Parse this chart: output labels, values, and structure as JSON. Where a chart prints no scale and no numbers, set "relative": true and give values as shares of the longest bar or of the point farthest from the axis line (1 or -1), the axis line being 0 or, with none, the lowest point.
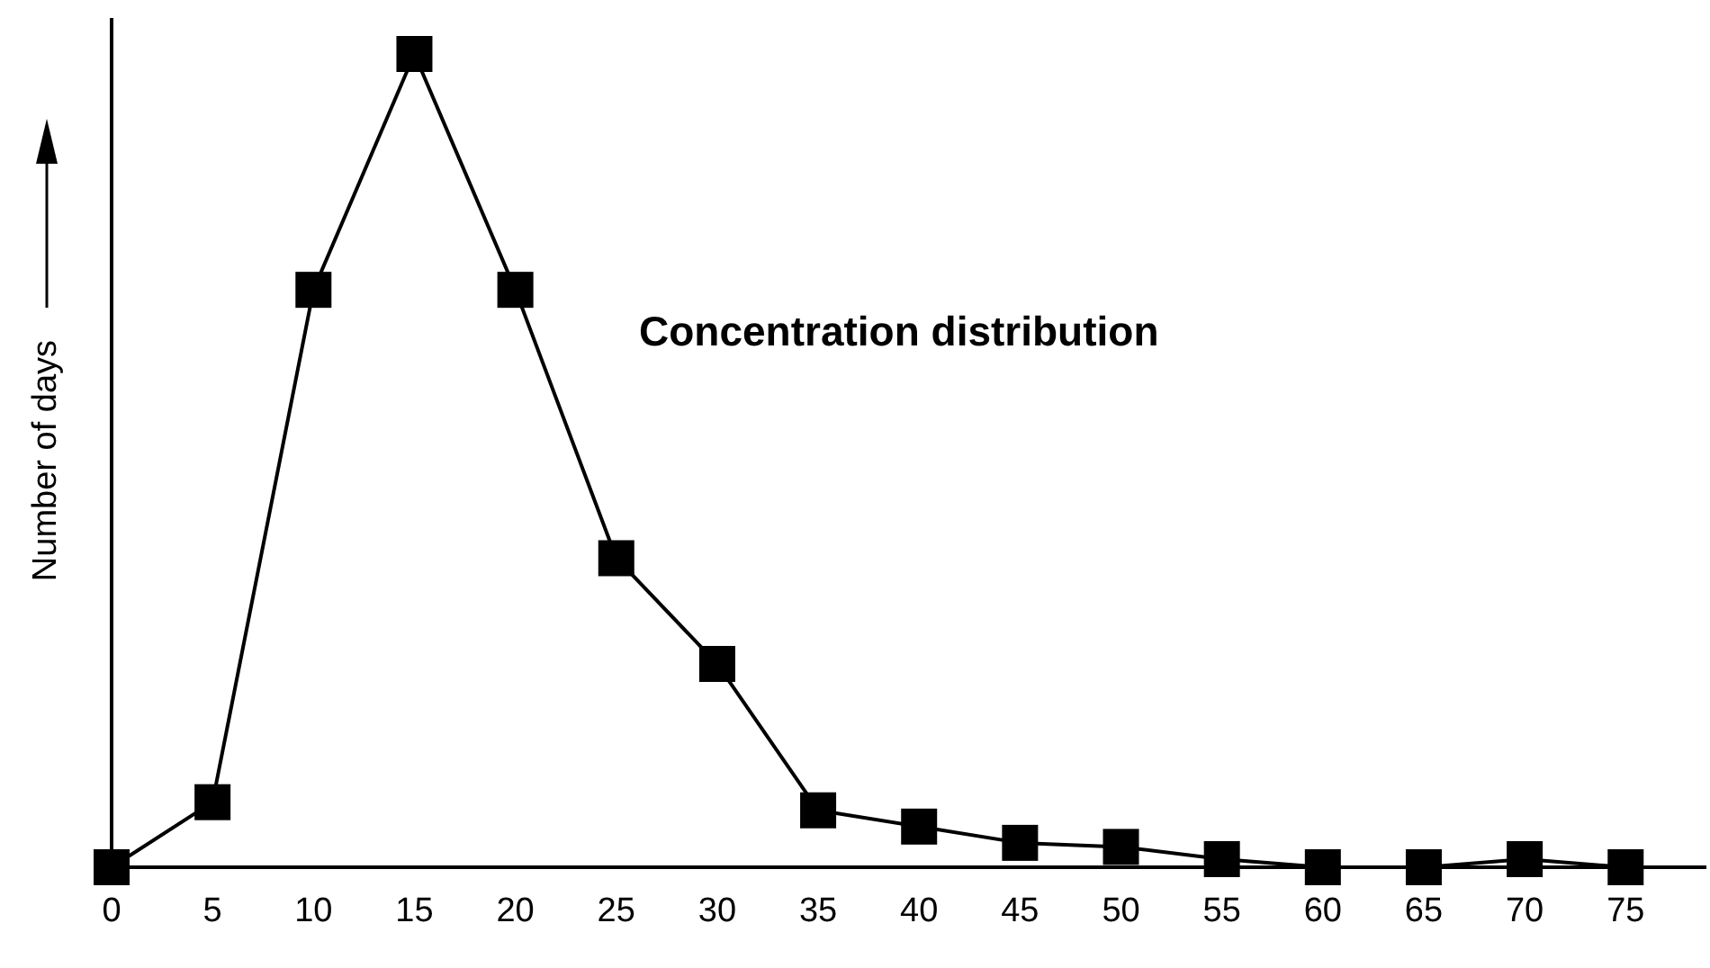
{
  "chart_data": {
    "type": "line",
    "relative": true,
    "xlabel": null,
    "ylabel": "Number of days",
    "annotations": [
      "Concentration distribution"
    ],
    "x": [
      0,
      5,
      10,
      15,
      20,
      25,
      30,
      35,
      40,
      45,
      50,
      55,
      60,
      65,
      70,
      75
    ],
    "series": [
      {
        "color": "#000000",
        "values": [
          0,
          0.08,
          0.71,
          1,
          0.71,
          0.38,
          0.25,
          0.07,
          0.05,
          0.03,
          0.025,
          0.01,
          0,
          0,
          0.01,
          0
        ]
      }
    ],
    "xlim": [
      0,
      79
    ],
    "xticks": [
      0,
      5,
      10,
      15,
      20,
      25,
      30,
      35,
      40,
      45,
      50,
      55,
      60,
      65,
      70,
      75
    ],
    "marker": "square",
    "line_style": "solid",
    "grid": false
  }
}
